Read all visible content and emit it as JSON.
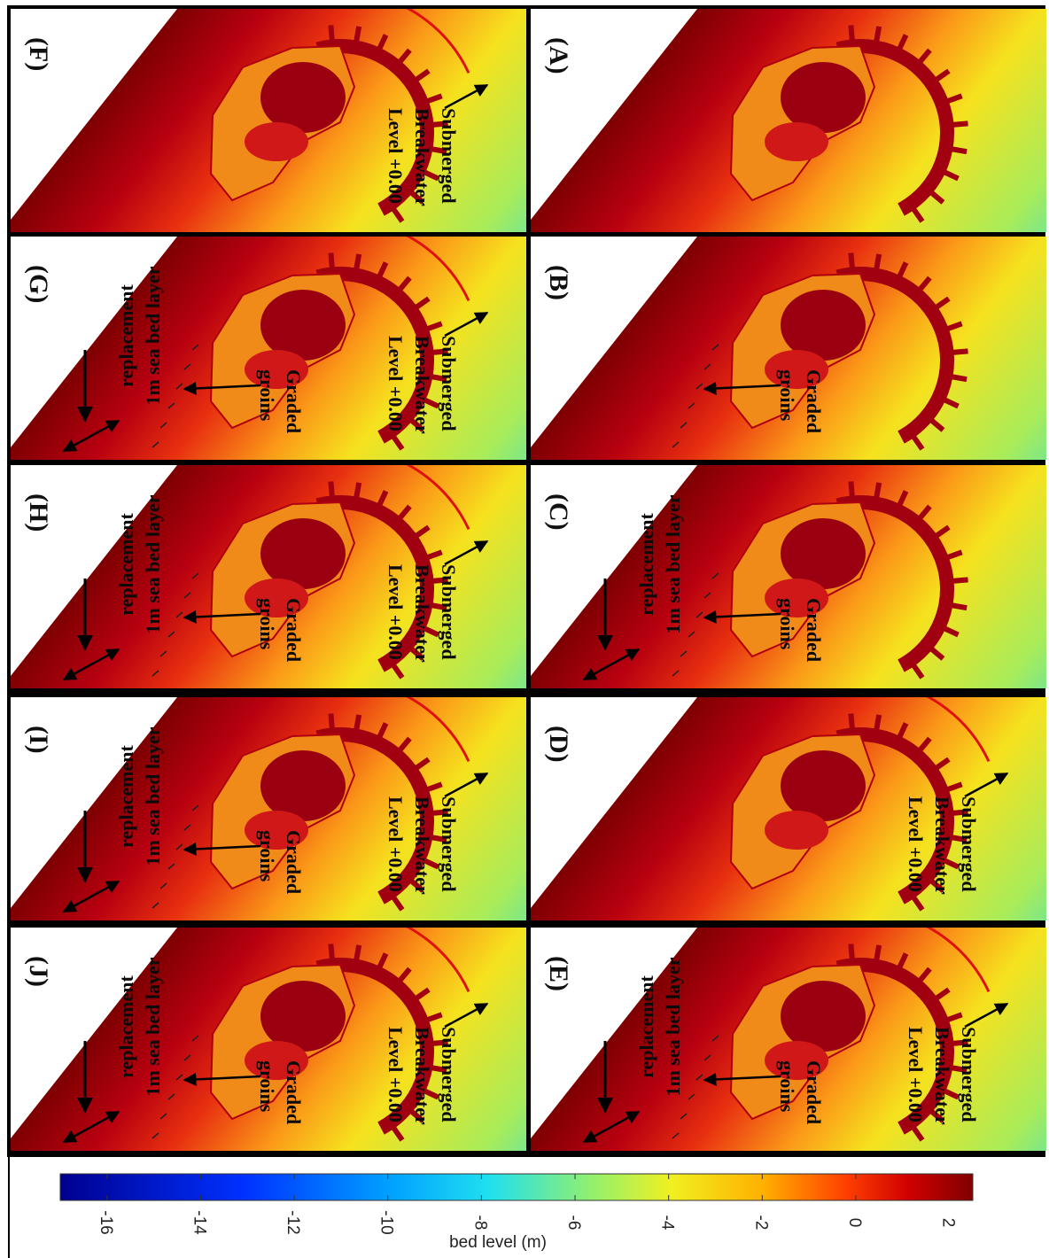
{
  "panels": [
    {
      "label": "(A)"
    },
    {
      "label": "(B)",
      "groins": [
        "Graded",
        "groins"
      ]
    },
    {
      "label": "(C)",
      "groins": [
        "Graded",
        "groins"
      ],
      "layer": [
        "1m sea bed layer",
        "replacement"
      ]
    },
    {
      "label": "(D)",
      "breakwater": [
        "Submerged",
        "Breakwater",
        "Level +0.00"
      ]
    },
    {
      "label": "(E)",
      "breakwater": [
        "Submerged",
        "Breakwater",
        "Level +0.00"
      ],
      "groins": [
        "Graded",
        "groins"
      ],
      "layer": [
        "1m sea bed layer",
        "replacement"
      ]
    },
    {
      "label": "(F)",
      "breakwater": [
        "Submerged",
        "Breakwater",
        "Level +0.00"
      ]
    },
    {
      "label": "(G)",
      "breakwater": [
        "Submerged",
        "Breakwater",
        "Level +0.00"
      ],
      "groins": [
        "Graded",
        "groins"
      ],
      "layer": [
        "1m sea bed layer",
        "replacement"
      ]
    },
    {
      "label": "(H)",
      "breakwater": [
        "Submerged",
        "Breakwater",
        "Level +0.00"
      ],
      "groins": [
        "Graded",
        "groins"
      ],
      "layer": [
        "1m sea bed layer",
        "replacement"
      ]
    },
    {
      "label": "(I)",
      "breakwater": [
        "Submerged",
        "Breakwater",
        "Level +0.00"
      ],
      "groins": [
        "Graded",
        "groins"
      ],
      "layer": [
        "1m sea bed layer",
        "replacement"
      ]
    },
    {
      "label": "(J)",
      "breakwater": [
        "Submerged",
        "Breakwater",
        "Level +0.00"
      ],
      "groins": [
        "Graded",
        "groins"
      ],
      "layer": [
        "1m sea bed layer",
        "replacement"
      ]
    }
  ],
  "colorbar": {
    "title": "bed level (m)",
    "limits": [
      -17,
      2.5
    ],
    "ticks": [
      -16,
      -14,
      -12,
      -10,
      -8,
      -6,
      -4,
      -2,
      0,
      2
    ]
  }
}
